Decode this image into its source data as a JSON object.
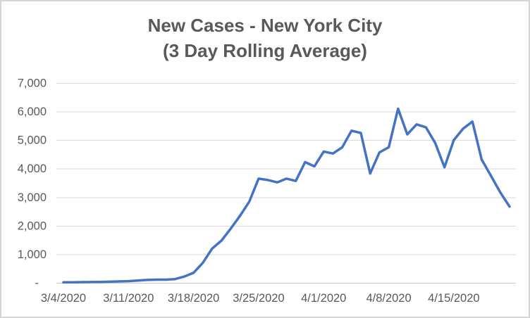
{
  "chart_data": {
    "type": "line",
    "title": [
      "New Cases - New York City",
      "(3 Day Rolling Average)"
    ],
    "legend": "none",
    "grid": true,
    "x_axis": {
      "ticks": [
        {
          "label": "3/4/2020",
          "index": 0
        },
        {
          "label": "3/11/2020",
          "index": 7
        },
        {
          "label": "3/18/2020",
          "index": 14
        },
        {
          "label": "3/25/2020",
          "index": 21
        },
        {
          "label": "4/1/2020",
          "index": 28
        },
        {
          "label": "4/8/2020",
          "index": 35
        },
        {
          "label": "4/15/2020",
          "index": 42
        }
      ]
    },
    "y_axis": {
      "range": [
        0,
        7000
      ],
      "ticks": [
        {
          "label": "-",
          "value": 0
        },
        {
          "label": "1,000",
          "value": 1000
        },
        {
          "label": "2,000",
          "value": 2000
        },
        {
          "label": "3,000",
          "value": 3000
        },
        {
          "label": "4,000",
          "value": 4000
        },
        {
          "label": "5,000",
          "value": 5000
        },
        {
          "label": "6,000",
          "value": 6000
        },
        {
          "label": "7,000",
          "value": 7000
        }
      ]
    },
    "series": [
      {
        "name": "New cases (3 day rolling average)",
        "color": "#4472C4",
        "dates": [
          "3/4/2020",
          "3/5/2020",
          "3/6/2020",
          "3/7/2020",
          "3/8/2020",
          "3/9/2020",
          "3/10/2020",
          "3/11/2020",
          "3/12/2020",
          "3/13/2020",
          "3/14/2020",
          "3/15/2020",
          "3/16/2020",
          "3/17/2020",
          "3/18/2020",
          "3/19/2020",
          "3/20/2020",
          "3/21/2020",
          "3/22/2020",
          "3/23/2020",
          "3/24/2020",
          "3/25/2020",
          "3/26/2020",
          "3/27/2020",
          "3/28/2020",
          "3/29/2020",
          "3/30/2020",
          "3/31/2020",
          "4/1/2020",
          "4/2/2020",
          "4/3/2020",
          "4/4/2020",
          "4/5/2020",
          "4/6/2020",
          "4/7/2020",
          "4/8/2020",
          "4/9/2020",
          "4/10/2020",
          "4/11/2020",
          "4/12/2020",
          "4/13/2020",
          "4/14/2020",
          "4/15/2020",
          "4/16/2020",
          "4/17/2020",
          "4/18/2020",
          "4/19/2020",
          "4/20/2020",
          "4/21/2020"
        ],
        "values": [
          20,
          20,
          25,
          30,
          30,
          40,
          50,
          60,
          80,
          100,
          110,
          110,
          130,
          220,
          350,
          700,
          1200,
          1480,
          1900,
          2350,
          2850,
          3650,
          3600,
          3520,
          3650,
          3570,
          4230,
          4080,
          4600,
          4530,
          4750,
          5330,
          5250,
          3830,
          4570,
          4750,
          6100,
          5200,
          5550,
          5450,
          4900,
          4050,
          5000,
          5400,
          5650,
          4320,
          3750,
          3170,
          2670
        ]
      }
    ],
    "colors": {
      "line": "#4472C4",
      "gridline": "#D9D9D9",
      "axis_line": "#C8C8C8",
      "text": "#595959",
      "border": "#D5D5D5",
      "background": "#FFFFFF"
    }
  }
}
